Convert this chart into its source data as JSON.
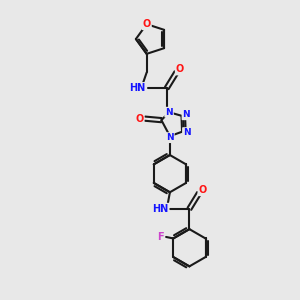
{
  "bg_color": "#e8e8e8",
  "bond_color": "#1a1a1a",
  "N_color": "#1414ff",
  "O_color": "#ff1414",
  "F_color": "#cc44cc",
  "H_color": "#708090",
  "figsize": [
    3.0,
    3.0
  ],
  "dpi": 100,
  "lw": 1.5,
  "fs": 7.0,
  "xlim": [
    0,
    10
  ],
  "ylim": [
    0,
    10
  ]
}
